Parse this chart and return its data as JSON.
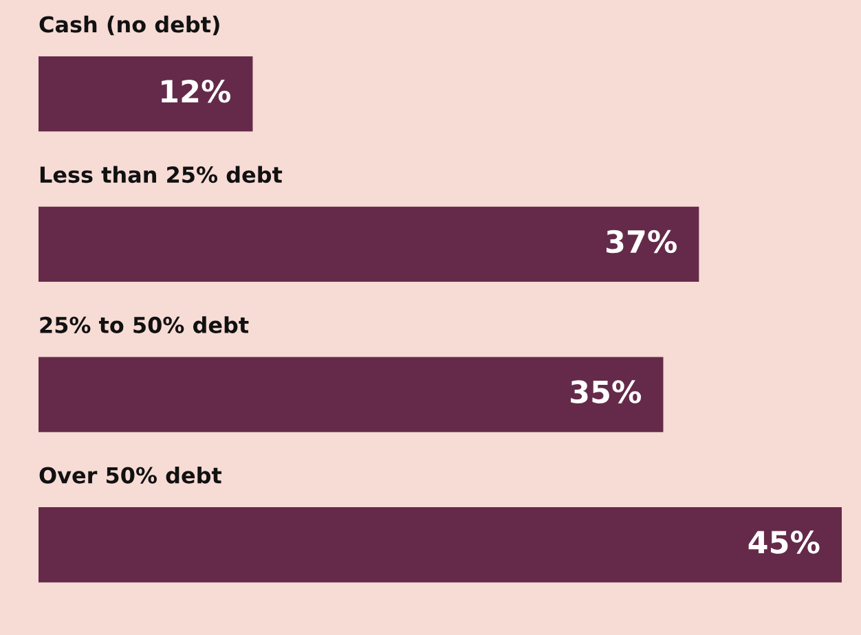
{
  "chart_data": {
    "type": "bar",
    "orientation": "horizontal",
    "categories": [
      "Cash (no debt)",
      "Less than 25% debt",
      "25% to 50% debt",
      "Over 50% debt"
    ],
    "values": [
      12,
      37,
      35,
      45
    ],
    "value_labels": [
      "12%",
      "37%",
      "35%",
      "45%"
    ],
    "color": "#652a4a",
    "tick_labels": false
  }
}
